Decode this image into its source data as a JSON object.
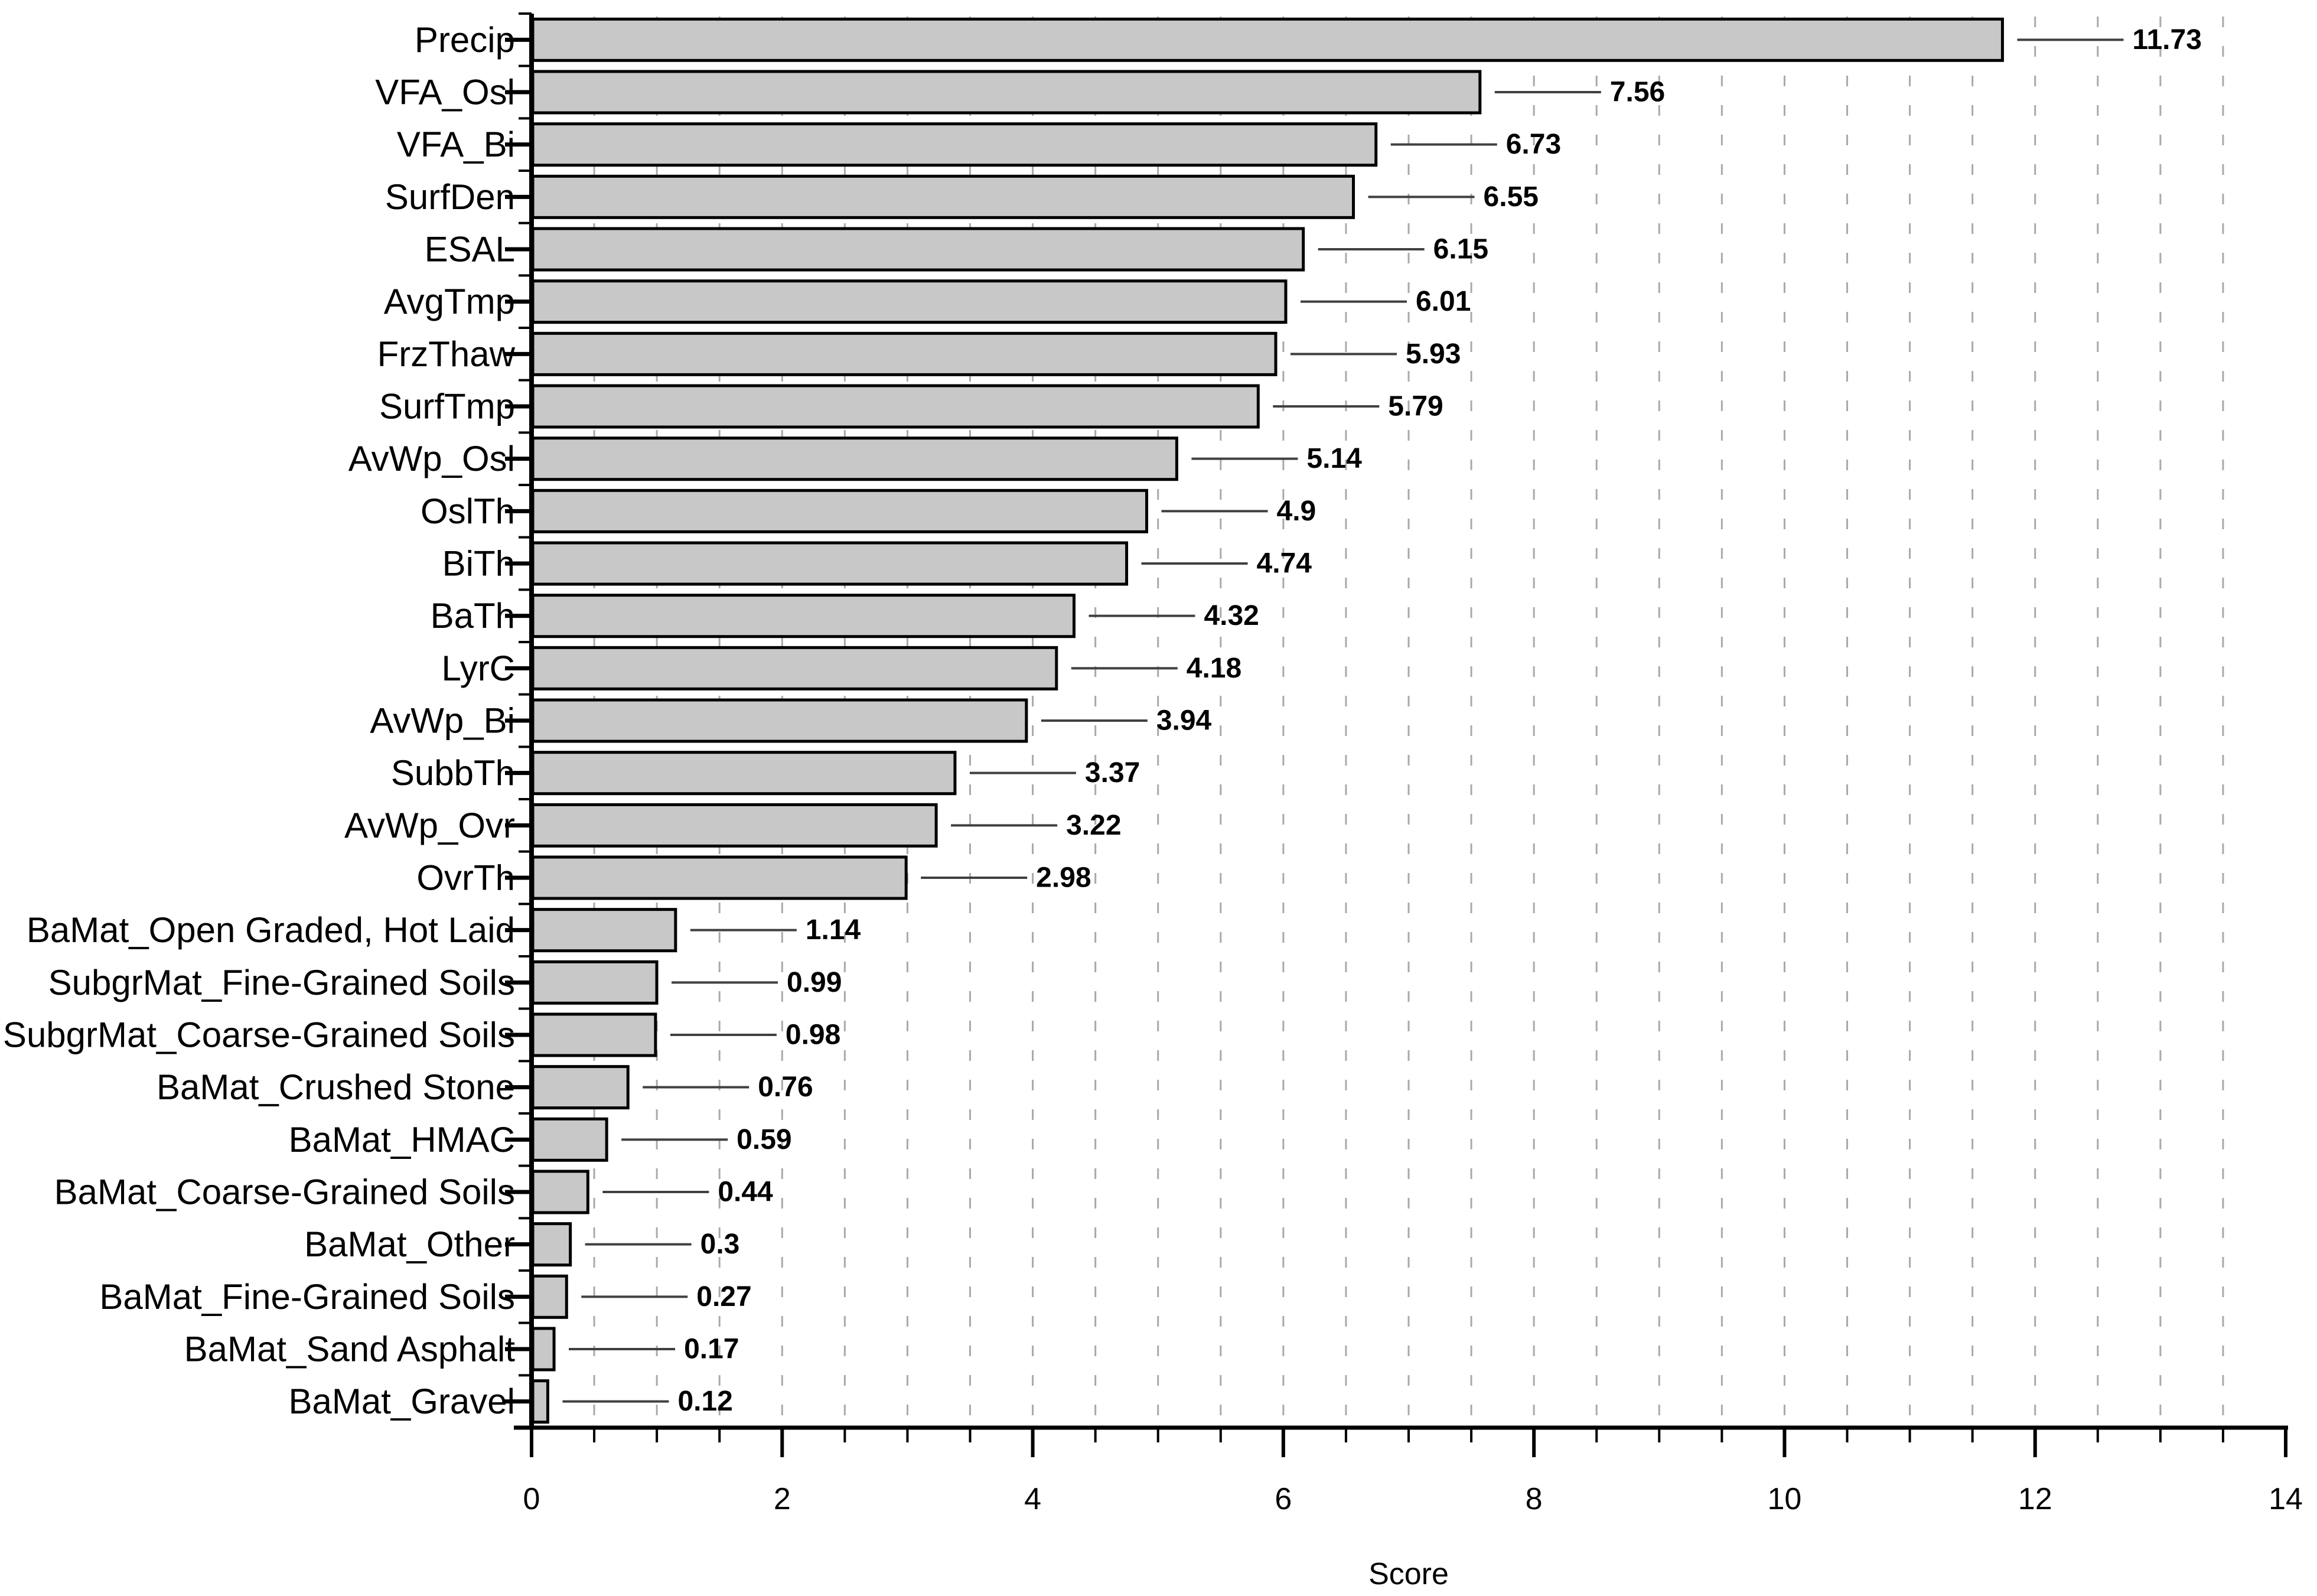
{
  "page": {
    "background": "#ffffff"
  },
  "chart_data": {
    "type": "bar",
    "orientation": "horizontal",
    "title": "",
    "xlabel": "Score",
    "ylabel": "",
    "xlim": [
      0,
      14
    ],
    "x_major_ticks": [
      0,
      2,
      4,
      6,
      8,
      10,
      12,
      14
    ],
    "x_tick_labels": [
      "0",
      "2",
      "4",
      "6",
      "8",
      "10",
      "12",
      "14"
    ],
    "x_minor_tick_step": 0.5,
    "gridline_step": 0.5,
    "grid": "vertical-dashed",
    "legend_position": "none",
    "bar_fill": "#c8c8c8",
    "bar_edge": "#000000",
    "gridline_color": "#a9a9a9",
    "leader_line_color": "#404040",
    "axis_color": "#000000",
    "text_color": "#000000",
    "categories": [
      "Precip",
      "VFA_Osl",
      "VFA_Bi",
      "SurfDen",
      "ESAL",
      "AvgTmp",
      "FrzThaw",
      "SurfTmp",
      "AvWp_Osl",
      "OslTh",
      "BiTh",
      "BaTh",
      "LyrC",
      "AvWp_Bi",
      "SubbTh",
      "AvWp_Ovr",
      "OvrTh",
      "BaMat_Open Graded, Hot Laid",
      "SubgrMat_Fine-Grained Soils",
      "SubgrMat_Coarse-Grained Soils",
      "BaMat_Crushed Stone",
      "BaMat_HMAC",
      "BaMat_Coarse-Grained Soils",
      "BaMat_Other",
      "BaMat_Fine-Grained Soils",
      "BaMat_Sand Asphalt",
      "BaMat_Gravel"
    ],
    "values": [
      11.73,
      7.56,
      6.73,
      6.55,
      6.15,
      6.01,
      5.93,
      5.79,
      5.14,
      4.9,
      4.74,
      4.32,
      4.18,
      3.94,
      3.37,
      3.22,
      2.98,
      1.14,
      0.99,
      0.98,
      0.76,
      0.59,
      0.44,
      0.3,
      0.27,
      0.17,
      0.12
    ],
    "value_labels": [
      "11.73",
      "7.56",
      "6.73",
      "6.55",
      "6.15",
      "6.01",
      "5.93",
      "5.79",
      "5.14",
      "4.9",
      "4.74",
      "4.32",
      "4.18",
      "3.94",
      "3.37",
      "3.22",
      "2.98",
      "1.14",
      "0.99",
      "0.98",
      "0.76",
      "0.59",
      "0.44",
      "0.3",
      "0.27",
      "0.17",
      "0.12"
    ]
  }
}
